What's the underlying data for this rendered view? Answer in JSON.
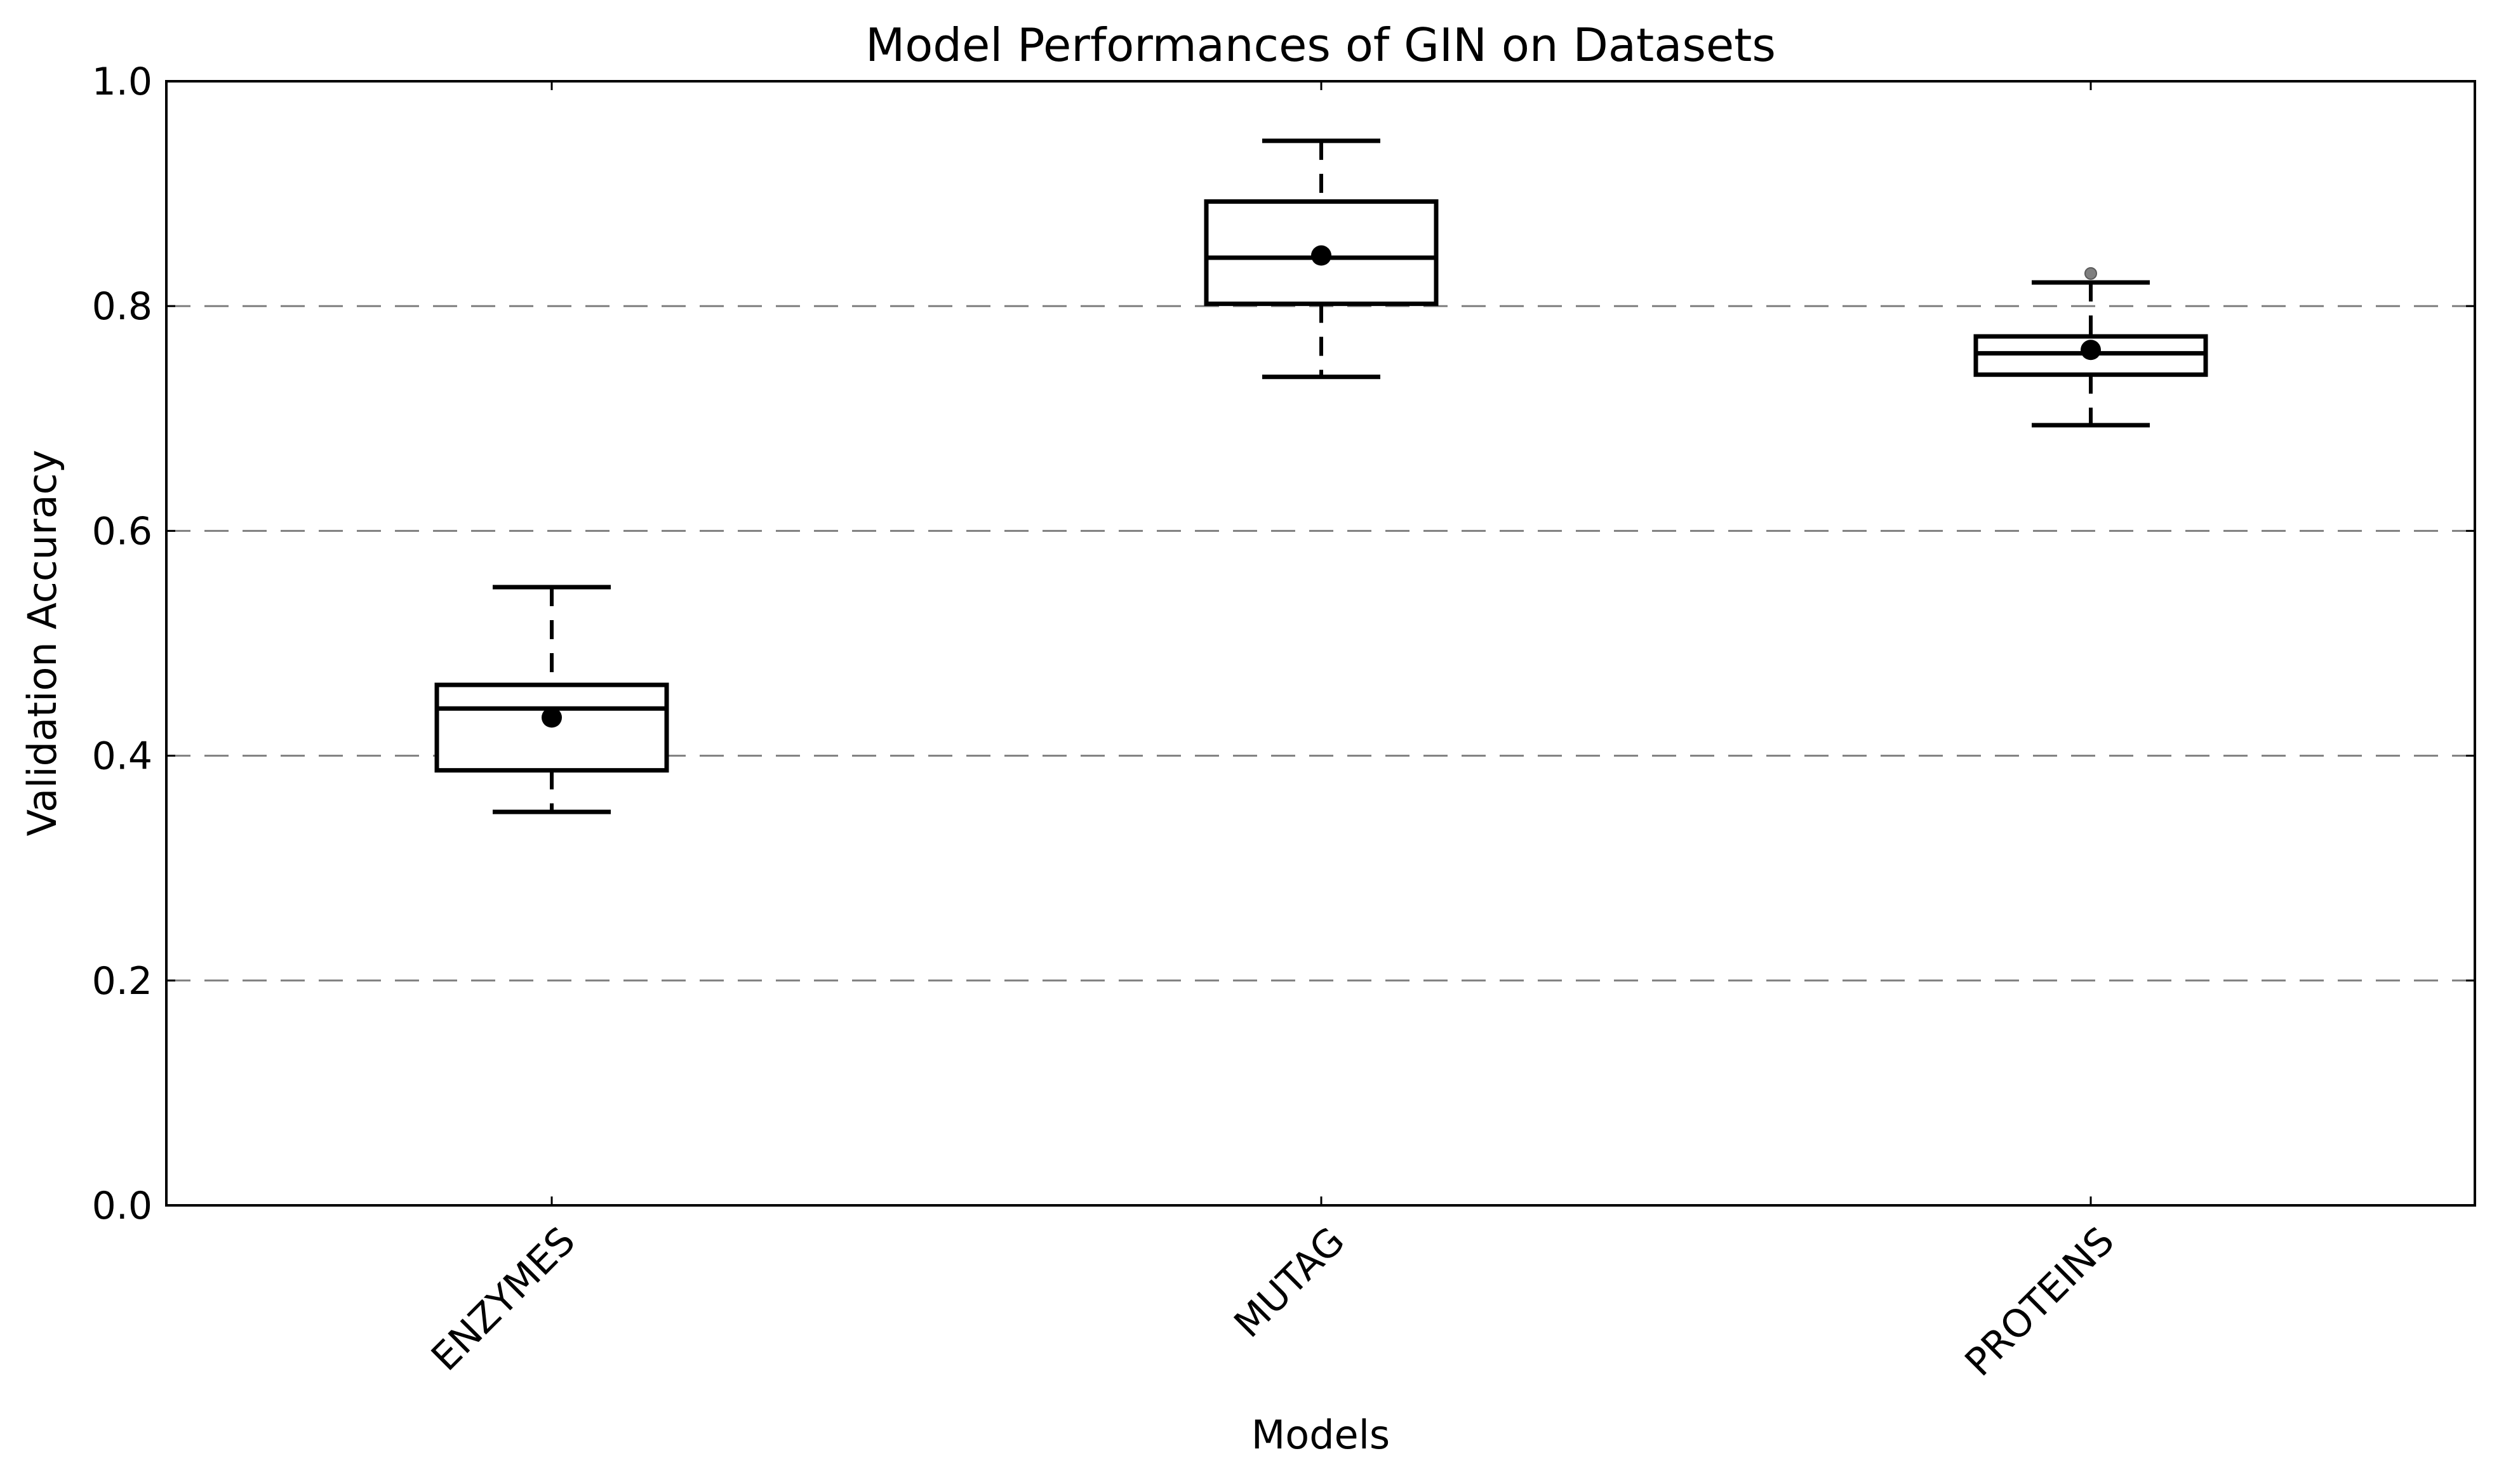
{
  "chart_data": {
    "type": "box",
    "title": "Model Performances of GIN on Datasets",
    "xlabel": "Models",
    "ylabel": "Validation Accuracy",
    "ylim": [
      0.0,
      1.0
    ],
    "yticks": [
      "0.0",
      "0.2",
      "0.4",
      "0.6",
      "0.8",
      "1.0"
    ],
    "grid": "horizontal dashed",
    "categories": [
      "ENZYMES",
      "MUTAG",
      "PROTEINS"
    ],
    "series": [
      {
        "category": "ENZYMES",
        "whisker_low": 0.35,
        "q1": 0.387,
        "median": 0.442,
        "q3": 0.463,
        "whisker_high": 0.55,
        "mean": 0.434,
        "outliers": []
      },
      {
        "category": "MUTAG",
        "whisker_low": 0.737,
        "q1": 0.802,
        "median": 0.843,
        "q3": 0.893,
        "whisker_high": 0.947,
        "mean": 0.845,
        "outliers": []
      },
      {
        "category": "PROTEINS",
        "whisker_low": 0.694,
        "q1": 0.739,
        "median": 0.758,
        "q3": 0.773,
        "whisker_high": 0.821,
        "mean": 0.761,
        "outliers": [
          0.829
        ]
      }
    ]
  }
}
